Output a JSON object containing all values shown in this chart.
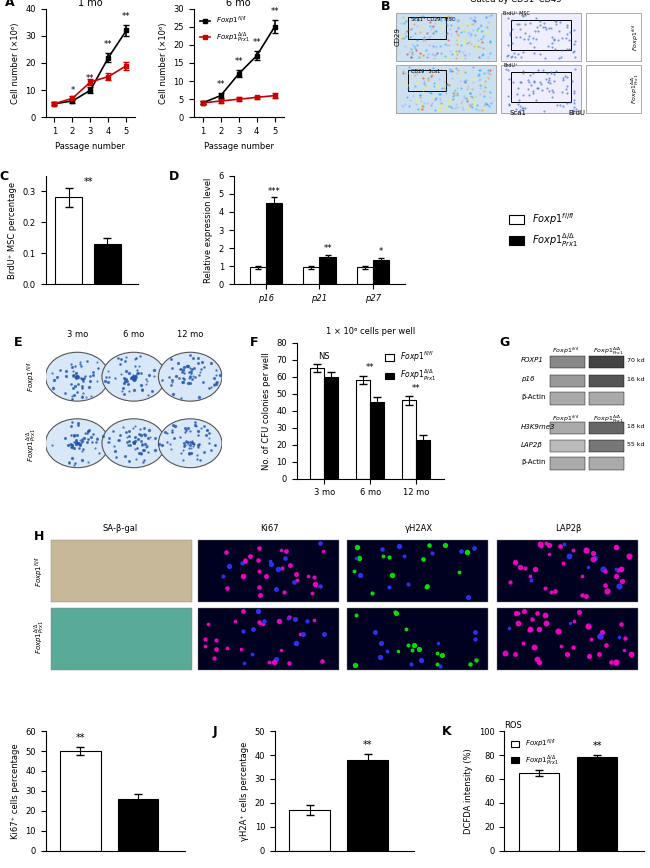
{
  "panel_A_1mo": {
    "x": [
      1,
      2,
      3,
      4,
      5
    ],
    "black_y": [
      5,
      6,
      10,
      22,
      32
    ],
    "black_err": [
      0.5,
      0.7,
      1.2,
      1.5,
      2.0
    ],
    "red_y": [
      5,
      7,
      13,
      15,
      19
    ],
    "red_err": [
      0.5,
      0.8,
      1.2,
      1.3,
      1.5
    ],
    "title": "1 mo",
    "ylabel": "Cell number (×10⁶)",
    "xlabel": "Passage number",
    "sig_black": [
      "",
      "*",
      "**",
      "**",
      "**"
    ],
    "ylim": [
      0,
      40
    ]
  },
  "panel_A_6mo": {
    "x": [
      1,
      2,
      3,
      4,
      5
    ],
    "black_y": [
      4,
      6,
      12,
      17,
      25
    ],
    "black_err": [
      0.4,
      0.6,
      1.0,
      1.3,
      1.8
    ],
    "red_y": [
      4,
      4.5,
      5,
      5.5,
      6
    ],
    "red_err": [
      0.4,
      0.5,
      0.6,
      0.5,
      0.6
    ],
    "title": "6 mo",
    "ylabel": "Cell number (×10⁶)",
    "xlabel": "Passage number",
    "sig_black": [
      "",
      "**",
      "**",
      "**",
      "**"
    ],
    "ylim": [
      0,
      30
    ]
  },
  "panel_C": {
    "values": [
      0.28,
      0.13
    ],
    "errors": [
      0.03,
      0.02
    ],
    "colors": [
      "white",
      "black"
    ],
    "ylabel": "BrdU⁺ MSC percentage",
    "sig": "**",
    "ylim": [
      0,
      0.35
    ]
  },
  "panel_D": {
    "categories": [
      "p16",
      "p21",
      "p27"
    ],
    "white_values": [
      0.95,
      0.95,
      0.95
    ],
    "black_values": [
      4.5,
      1.5,
      1.35
    ],
    "white_errors": [
      0.08,
      0.08,
      0.08
    ],
    "black_errors": [
      0.3,
      0.12,
      0.1
    ],
    "ylabel": "Relative expression level",
    "sig": [
      "***",
      "**",
      "*"
    ],
    "ylim": [
      0,
      6
    ]
  },
  "panel_F": {
    "categories": [
      "3 mo",
      "6 mo",
      "12 mo"
    ],
    "white_values": [
      65,
      58,
      46
    ],
    "black_values": [
      60,
      45,
      23
    ],
    "white_errors": [
      2.5,
      2.5,
      2.5
    ],
    "black_errors": [
      2.5,
      3.0,
      2.5
    ],
    "ylabel": "No. of CFU colonies per well",
    "title": "1 × 10⁶ cells per well",
    "sig": [
      "NS",
      "**",
      "**"
    ],
    "ylim": [
      0,
      80
    ]
  },
  "panel_I": {
    "values": [
      50,
      26
    ],
    "errors": [
      2.0,
      2.5
    ],
    "colors": [
      "white",
      "black"
    ],
    "ylabel": "Ki67⁺ cells percentage",
    "sig": "**",
    "ylim": [
      0,
      60
    ]
  },
  "panel_J": {
    "values": [
      17,
      38
    ],
    "errors": [
      2.0,
      2.5
    ],
    "colors": [
      "white",
      "black"
    ],
    "ylabel": "γH2A⁺ cells percentage",
    "sig": "**",
    "ylim": [
      0,
      50
    ]
  },
  "panel_K": {
    "values": [
      65,
      78
    ],
    "errors": [
      2.5,
      2.0
    ],
    "colors": [
      "white",
      "black"
    ],
    "ylabel": "DCFDA intensity (%)",
    "title": "ROS",
    "sig": "**",
    "ylim": [
      0,
      100
    ]
  },
  "colors": {
    "black_line": "#000000",
    "red_line": "#cc0000"
  }
}
